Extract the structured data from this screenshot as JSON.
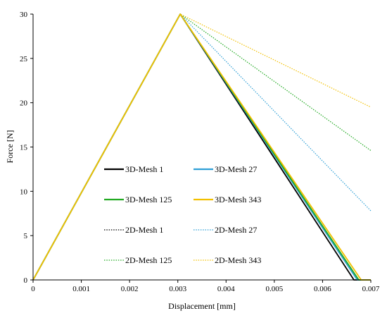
{
  "chart_data": {
    "type": "line",
    "xlabel": "Displacement [mm]",
    "ylabel": "Force [N]",
    "xlim": [
      0,
      0.007
    ],
    "ylim": [
      0,
      30
    ],
    "xticks": [
      0,
      0.001,
      0.002,
      0.003,
      0.004,
      0.005,
      0.006,
      0.007
    ],
    "xtick_labels": [
      "0",
      "0.001",
      "0.002",
      "0.003",
      "0.004",
      "0.005",
      "0.006",
      "0.007"
    ],
    "yticks": [
      0,
      5,
      10,
      15,
      20,
      25,
      30
    ],
    "ytick_labels": [
      "0",
      "5",
      "10",
      "15",
      "20",
      "25",
      "30"
    ],
    "grid": false,
    "legend_placement": "center",
    "series": [
      {
        "name": "3D-Mesh 1",
        "color": "#000000",
        "style": "solid",
        "x": [
          0,
          0.00305,
          0.00665,
          0.007
        ],
        "y": [
          0,
          30,
          0,
          0
        ]
      },
      {
        "name": "3D-Mesh 27",
        "color": "#2e9fd6",
        "style": "solid",
        "x": [
          0,
          0.00305,
          0.00672,
          0.007
        ],
        "y": [
          0,
          30,
          0,
          0
        ]
      },
      {
        "name": "3D-Mesh 125",
        "color": "#22aa22",
        "style": "solid",
        "x": [
          0,
          0.00305,
          0.00675,
          0.007
        ],
        "y": [
          0,
          30,
          0,
          0
        ]
      },
      {
        "name": "3D-Mesh 343",
        "color": "#f2c000",
        "style": "solid",
        "x": [
          0,
          0.00305,
          0.0068,
          0.007
        ],
        "y": [
          0,
          30,
          0,
          0
        ]
      },
      {
        "name": "2D-Mesh 1",
        "color": "#000000",
        "style": "dotted",
        "x": [
          0,
          0.00305,
          0.00665,
          0.007
        ],
        "y": [
          0,
          30,
          0,
          0
        ]
      },
      {
        "name": "2D-Mesh 27",
        "color": "#2e9fd6",
        "style": "dotted",
        "x": [
          0,
          0.00305,
          0.007
        ],
        "y": [
          0,
          30,
          7.8
        ]
      },
      {
        "name": "2D-Mesh 125",
        "color": "#22aa22",
        "style": "dotted",
        "x": [
          0,
          0.00305,
          0.007
        ],
        "y": [
          0,
          30,
          14.6
        ]
      },
      {
        "name": "2D-Mesh 343",
        "color": "#f2c000",
        "style": "dotted",
        "x": [
          0,
          0.00305,
          0.007
        ],
        "y": [
          0,
          30,
          19.5
        ]
      }
    ]
  }
}
